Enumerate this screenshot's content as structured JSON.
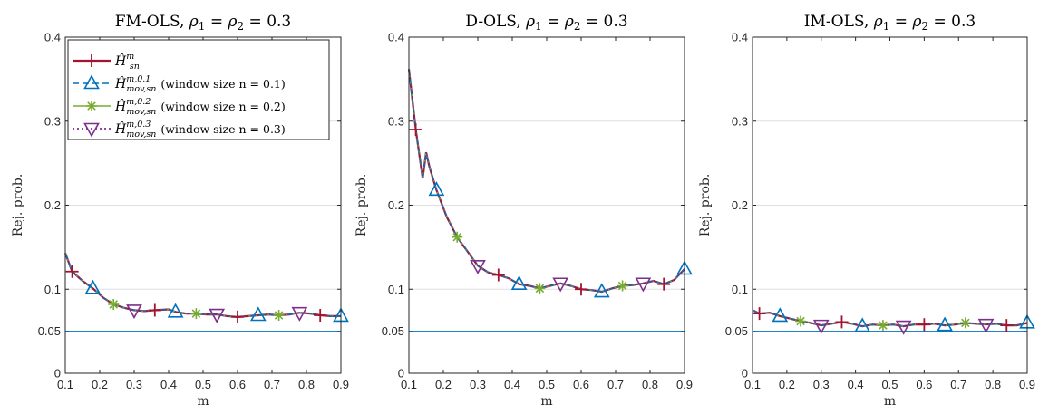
{
  "chart_data": [
    {
      "type": "line",
      "title": "FM-OLS, ρ₁ = ρ₂ = 0.3",
      "xlabel": "m",
      "ylabel": "Rej. prob.",
      "xlim": [
        0.1,
        0.9
      ],
      "ylim": [
        0,
        0.4
      ],
      "xticks": [
        "0.1",
        "0.2",
        "0.3",
        "0.4",
        "0.5",
        "0.6",
        "0.7",
        "0.8",
        "0.9"
      ],
      "yticks": [
        "0",
        "0.05",
        "0.1",
        "0.2",
        "0.3",
        "0.4"
      ],
      "grid": "horizontal",
      "reference_line": 0.05,
      "legend": [
        {
          "label": "Ĥ^m_sn",
          "marker": "plus",
          "color": "#a2142f",
          "linestyle": "solid"
        },
        {
          "label": "Ĥ^{m,0.1}_{mov,sn} (window size n = 0.1)",
          "marker": "triangle-up",
          "color": "#0072bd",
          "linestyle": "dashed"
        },
        {
          "label": "Ĥ^{m,0.2}_{mov,sn} (window size n = 0.2)",
          "marker": "asterisk",
          "color": "#77ac30",
          "linestyle": "solid"
        },
        {
          "label": "Ĥ^{m,0.3}_{mov,sn} (window size n = 0.3)",
          "marker": "triangle-down",
          "color": "#7e2f8e",
          "linestyle": "dotted"
        }
      ],
      "legend_location": "top-left",
      "x": [
        0.1,
        0.12,
        0.15,
        0.18,
        0.21,
        0.24,
        0.27,
        0.3,
        0.33,
        0.36,
        0.4,
        0.42,
        0.45,
        0.48,
        0.51,
        0.54,
        0.57,
        0.6,
        0.63,
        0.66,
        0.69,
        0.72,
        0.75,
        0.78,
        0.81,
        0.84,
        0.87,
        0.9
      ],
      "series": [
        {
          "values": [
            0.143,
            0.121,
            0.11,
            0.101,
            0.09,
            0.082,
            0.078,
            0.075,
            0.074,
            0.075,
            0.076,
            0.073,
            0.071,
            0.071,
            0.07,
            0.07,
            0.068,
            0.067,
            0.068,
            0.069,
            0.07,
            0.069,
            0.07,
            0.072,
            0.071,
            0.069,
            0.068,
            0.068
          ]
        }
      ]
    },
    {
      "type": "line",
      "title": "D-OLS, ρ₁ = ρ₂ = 0.3",
      "xlabel": "m",
      "ylabel": "Rej. prob.",
      "xlim": [
        0.1,
        0.9
      ],
      "ylim": [
        0,
        0.4
      ],
      "xticks": [
        "0.1",
        "0.2",
        "0.3",
        "0.4",
        "0.5",
        "0.6",
        "0.7",
        "0.8",
        "0.9"
      ],
      "yticks": [
        "0",
        "0.05",
        "0.1",
        "0.2",
        "0.3",
        "0.4"
      ],
      "grid": "horizontal",
      "reference_line": 0.05,
      "x": [
        0.1,
        0.12,
        0.14,
        0.15,
        0.16,
        0.18,
        0.21,
        0.24,
        0.27,
        0.3,
        0.33,
        0.36,
        0.39,
        0.42,
        0.45,
        0.48,
        0.51,
        0.54,
        0.57,
        0.6,
        0.63,
        0.66,
        0.69,
        0.72,
        0.75,
        0.78,
        0.81,
        0.84,
        0.87,
        0.9
      ],
      "series": [
        {
          "values": [
            0.362,
            0.29,
            0.232,
            0.263,
            0.245,
            0.218,
            0.186,
            0.162,
            0.145,
            0.128,
            0.12,
            0.117,
            0.113,
            0.106,
            0.104,
            0.101,
            0.104,
            0.107,
            0.104,
            0.1,
            0.099,
            0.097,
            0.101,
            0.104,
            0.105,
            0.107,
            0.11,
            0.106,
            0.111,
            0.124
          ]
        }
      ]
    },
    {
      "type": "line",
      "title": "IM-OLS, ρ₁ = ρ₂ = 0.3",
      "xlabel": "m",
      "ylabel": "Rej. prob.",
      "xlim": [
        0.1,
        0.9
      ],
      "ylim": [
        0,
        0.4
      ],
      "xticks": [
        "0.1",
        "0.2",
        "0.3",
        "0.4",
        "0.5",
        "0.6",
        "0.7",
        "0.8",
        "0.9"
      ],
      "yticks": [
        "0",
        "0.05",
        "0.1",
        "0.2",
        "0.3",
        "0.4"
      ],
      "grid": "horizontal",
      "reference_line": 0.05,
      "x": [
        0.1,
        0.12,
        0.15,
        0.18,
        0.21,
        0.24,
        0.27,
        0.3,
        0.33,
        0.36,
        0.39,
        0.42,
        0.45,
        0.48,
        0.51,
        0.54,
        0.57,
        0.6,
        0.63,
        0.66,
        0.69,
        0.72,
        0.75,
        0.78,
        0.81,
        0.84,
        0.87,
        0.9
      ],
      "series": [
        {
          "values": [
            0.075,
            0.071,
            0.072,
            0.068,
            0.065,
            0.062,
            0.06,
            0.057,
            0.059,
            0.061,
            0.059,
            0.056,
            0.058,
            0.057,
            0.058,
            0.056,
            0.058,
            0.058,
            0.059,
            0.057,
            0.058,
            0.06,
            0.059,
            0.058,
            0.059,
            0.057,
            0.057,
            0.06
          ]
        }
      ]
    }
  ],
  "panels": [
    {
      "title_method": "FM-OLS, ",
      "title_rho1": "ρ",
      "title_sub1": "1",
      "title_eq1": " = ",
      "title_rho2": "ρ",
      "title_sub2": "2",
      "title_eq2": " = 0.3"
    },
    {
      "title_method": "D-OLS, ",
      "title_rho1": "ρ",
      "title_sub1": "1",
      "title_eq1": " = ",
      "title_rho2": "ρ",
      "title_sub2": "2",
      "title_eq2": " = 0.3"
    },
    {
      "title_method": "IM-OLS, ",
      "title_rho1": "ρ",
      "title_sub1": "1",
      "title_eq1": " = ",
      "title_rho2": "ρ",
      "title_sub2": "2",
      "title_eq2": " = 0.3"
    }
  ],
  "legend": {
    "items": [
      {
        "main": "Ĥ",
        "sup": "m",
        "sub": "sn",
        "suffix": ""
      },
      {
        "main": "Ĥ",
        "sup": "m,0.1",
        "sub": "mov,sn",
        "suffix": "(window size n = 0.1)"
      },
      {
        "main": "Ĥ",
        "sup": "m,0.2",
        "sub": "mov,sn",
        "suffix": "(window size n = 0.2)"
      },
      {
        "main": "Ĥ",
        "sup": "m,0.3",
        "sub": "mov,sn",
        "suffix": "(window size n = 0.3)"
      }
    ]
  }
}
